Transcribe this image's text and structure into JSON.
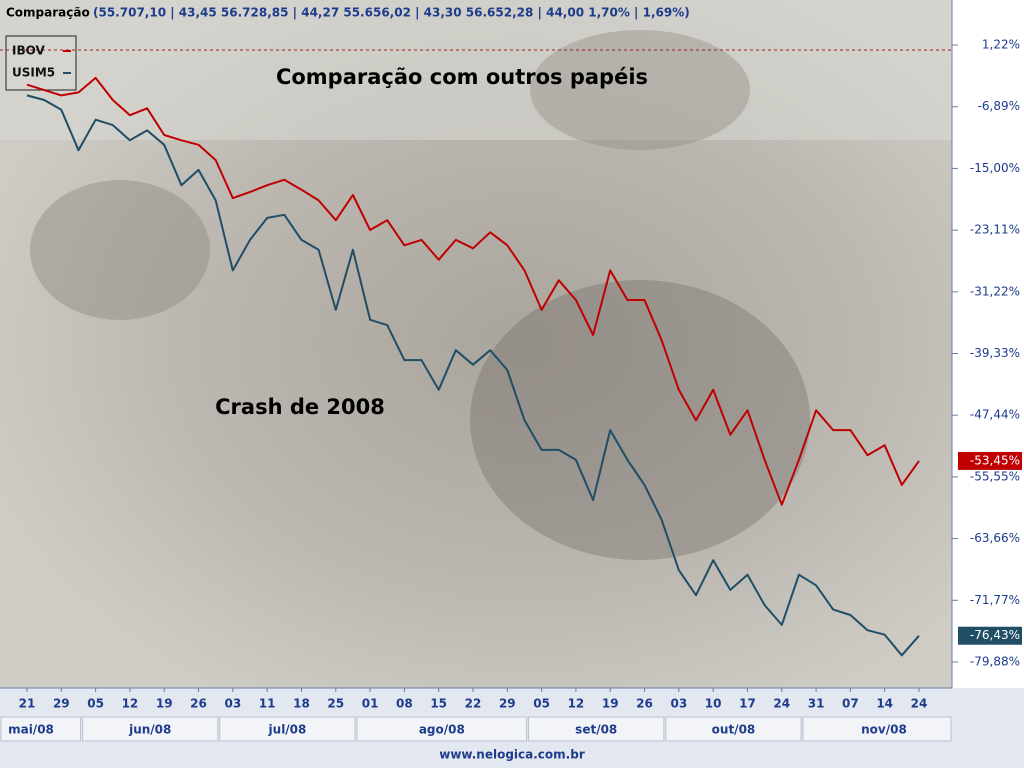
{
  "chart_data": {
    "type": "line",
    "title": "Comparação",
    "subtitle": "(55.707,10 | 43,45  56.728,85 | 44,27  55.656,02 | 43,30  56.652,28 | 44,00  1,70% | 1,69%)",
    "annotations": [
      "Comparação com outros papéis",
      "Crash de 2008"
    ],
    "footer": "www.nelogica.com.br",
    "categories": [
      "21",
      null,
      "29",
      null,
      "05",
      null,
      "12",
      null,
      "19",
      null,
      "26",
      null,
      "03",
      null,
      "11",
      null,
      "18",
      null,
      "25",
      null,
      "01",
      null,
      "08",
      null,
      "15",
      null,
      "22",
      null,
      "29",
      null,
      "05",
      null,
      "12",
      null,
      "19",
      null,
      "26",
      null,
      "03",
      null,
      "10",
      null,
      "17",
      null,
      "24",
      null,
      "31",
      null,
      "07",
      null,
      "14",
      null,
      "24"
    ],
    "months": [
      "mai/08",
      "jun/08",
      "jul/08",
      "ago/08",
      "set/08",
      "out/08",
      "nov/08"
    ],
    "series": [
      {
        "name": "IBOV",
        "color": "#c00000",
        "last_label": "-53,45%",
        "values": [
          -4.0,
          -4.7,
          -5.4,
          -5.0,
          -3.1,
          -6.0,
          -8.0,
          -7.1,
          -10.6,
          -11.3,
          -11.9,
          -13.9,
          -18.9,
          -18.1,
          -17.2,
          -16.5,
          -17.8,
          -19.2,
          -21.8,
          -18.5,
          -23.1,
          -21.8,
          -25.1,
          -24.4,
          -27.0,
          -24.4,
          -25.5,
          -23.4,
          -25.1,
          -28.4,
          -33.6,
          -29.7,
          -32.3,
          -36.9,
          -28.4,
          -32.3,
          -32.3,
          -37.6,
          -44.1,
          -48.1,
          -44.1,
          -50.0,
          -46.8,
          -53.3,
          -59.2,
          -53.3,
          -46.8,
          -49.4,
          -49.4,
          -52.7,
          -51.4,
          -56.6,
          -53.45
        ]
      },
      {
        "name": "USIM5",
        "color": "#1f4e66",
        "last_label": "-76,43%",
        "values": [
          -5.4,
          -6.0,
          -7.3,
          -12.6,
          -8.6,
          -9.3,
          -11.3,
          -10.0,
          -11.9,
          -17.2,
          -15.2,
          -19.2,
          -28.4,
          -24.4,
          -21.5,
          -21.1,
          -24.4,
          -25.7,
          -33.6,
          -25.7,
          -34.9,
          -35.6,
          -40.2,
          -40.2,
          -44.1,
          -38.9,
          -40.8,
          -38.9,
          -41.5,
          -48.1,
          -52.0,
          -52.0,
          -53.3,
          -58.6,
          -49.4,
          -53.3,
          -56.6,
          -61.2,
          -67.8,
          -71.1,
          -66.5,
          -70.4,
          -68.4,
          -72.4,
          -75.0,
          -68.4,
          -69.8,
          -73.0,
          -73.7,
          -75.7,
          -76.3,
          -79.0,
          -76.43
        ]
      }
    ],
    "reference_line": 0.56,
    "reference_color": "#a02020",
    "ylim": [
      -83.3,
      7.14
    ],
    "yticks": [
      {
        "value": 1.22,
        "label": "1,22%"
      },
      {
        "value": -6.89,
        "label": "-6,89%"
      },
      {
        "value": -15.0,
        "label": "-15,00%"
      },
      {
        "value": -23.11,
        "label": "-23,11%"
      },
      {
        "value": -31.22,
        "label": "-31,22%"
      },
      {
        "value": -39.33,
        "label": "-39,33%"
      },
      {
        "value": -47.44,
        "label": "-47,44%"
      },
      {
        "value": -55.55,
        "label": "-55,55%"
      },
      {
        "value": -63.66,
        "label": "-63,66%"
      },
      {
        "value": -71.77,
        "label": "-71,77%"
      },
      {
        "value": -79.88,
        "label": "-79,88%"
      }
    ],
    "grid": false
  }
}
